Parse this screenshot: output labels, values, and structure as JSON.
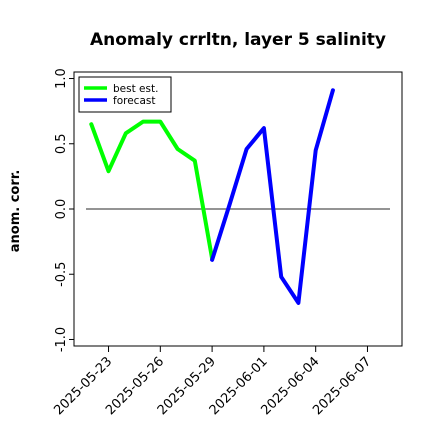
{
  "chart_data": {
    "type": "line",
    "title": "Anomaly crrltn, layer 5 salinity",
    "xlabel": "",
    "ylabel": "anom. corr.",
    "ylim": [
      -1.05,
      1.05
    ],
    "yticks": [
      {
        "value": -1.0,
        "label": "-1.0"
      },
      {
        "value": -0.5,
        "label": "-0.5"
      },
      {
        "value": 0.0,
        "label": "0.0"
      },
      {
        "value": 0.5,
        "label": "0.5"
      },
      {
        "value": 1.0,
        "label": "1.0"
      }
    ],
    "xlim": [
      "2025-05-21",
      "2025-06-09"
    ],
    "xticks": [
      {
        "date": "2025-05-23",
        "label": "2025-05-23",
        "color": "#000000"
      },
      {
        "date": "2025-05-26",
        "label": "2025-05-26",
        "color": "#000000"
      },
      {
        "date": "2025-05-29",
        "label": "2025-05-29",
        "color": "#228B22"
      },
      {
        "date": "2025-06-01",
        "label": "2025-06-01",
        "color": "#000000"
      },
      {
        "date": "2025-06-04",
        "label": "2025-06-04",
        "color": "#000000"
      },
      {
        "date": "2025-06-07",
        "label": "2025-06-07",
        "color": "#000000"
      }
    ],
    "reference_line": {
      "y": 0.0,
      "color": "#555555"
    },
    "legend": {
      "placement": "top-left"
    },
    "grid": false,
    "series": [
      {
        "name": "best est.",
        "color": "#00ff00",
        "points": [
          {
            "x": "2025-05-22",
            "y": 0.65
          },
          {
            "x": "2025-05-23",
            "y": 0.29
          },
          {
            "x": "2025-05-24",
            "y": 0.58
          },
          {
            "x": "2025-05-25",
            "y": 0.67
          },
          {
            "x": "2025-05-26",
            "y": 0.67
          },
          {
            "x": "2025-05-27",
            "y": 0.46
          },
          {
            "x": "2025-05-28",
            "y": 0.37
          },
          {
            "x": "2025-05-29",
            "y": -0.38
          }
        ]
      },
      {
        "name": "forecast",
        "color": "#0000ff",
        "points": [
          {
            "x": "2025-05-29",
            "y": -0.39
          },
          {
            "x": "2025-05-30",
            "y": 0.03
          },
          {
            "x": "2025-05-31",
            "y": 0.46
          },
          {
            "x": "2025-06-01",
            "y": 0.62
          },
          {
            "x": "2025-06-02",
            "y": -0.52
          },
          {
            "x": "2025-06-03",
            "y": -0.72
          },
          {
            "x": "2025-06-04",
            "y": 0.45
          },
          {
            "x": "2025-06-05",
            "y": 0.91
          }
        ]
      }
    ]
  }
}
